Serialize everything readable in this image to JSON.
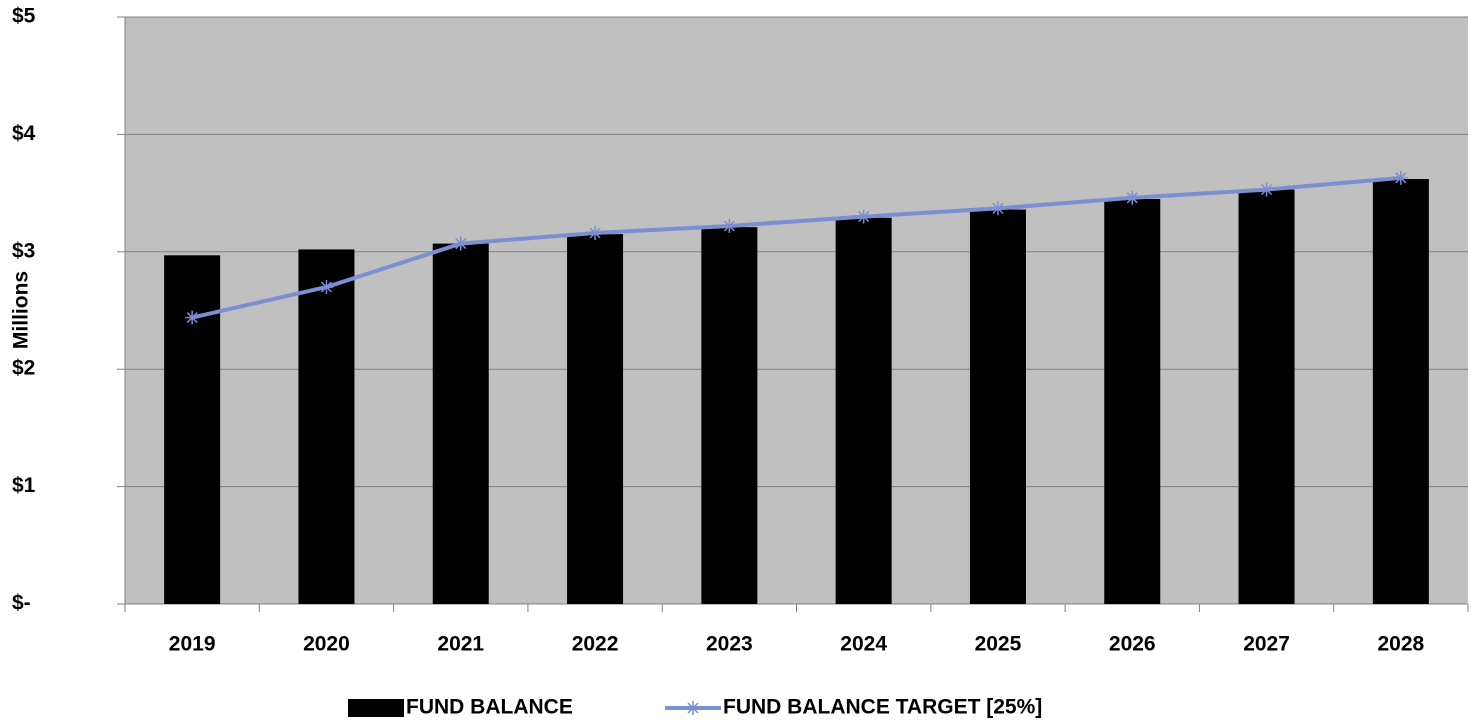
{
  "chart_data": {
    "type": "bar",
    "y_label": "Millions",
    "categories": [
      "2019",
      "2020",
      "2021",
      "2022",
      "2023",
      "2024",
      "2025",
      "2026",
      "2027",
      "2028"
    ],
    "series": [
      {
        "name": "FUND BALANCE",
        "type": "bar",
        "color": "#000000",
        "values": [
          2.97,
          3.02,
          3.07,
          3.15,
          3.21,
          3.29,
          3.36,
          3.45,
          3.53,
          3.62
        ]
      },
      {
        "name": "FUND BALANCE TARGET [25%]",
        "type": "line",
        "color": "#7b8fd0",
        "values": [
          2.44,
          2.7,
          3.07,
          3.16,
          3.22,
          3.3,
          3.37,
          3.46,
          3.53,
          3.63
        ]
      }
    ],
    "ylim": [
      0,
      5
    ],
    "yticks": [
      {
        "value": 0,
        "label": "$-"
      },
      {
        "value": 1,
        "label": "$1"
      },
      {
        "value": 2,
        "label": "$2"
      },
      {
        "value": 3,
        "label": "$3"
      },
      {
        "value": 4,
        "label": "$4"
      },
      {
        "value": 5,
        "label": "$5"
      }
    ],
    "grid": true,
    "background": "#c0c0c0",
    "legend": "bottom"
  }
}
